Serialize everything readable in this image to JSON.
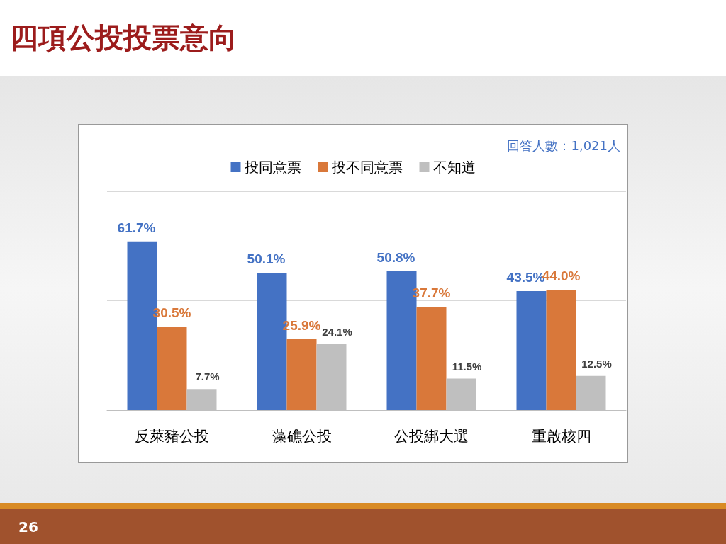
{
  "chart_data": {
    "type": "bar",
    "title": "四項公投投票意向",
    "annotations": [
      "回答人數：1,021人",
      "26"
    ],
    "categories": [
      "反萊豬公投",
      "藻礁公投",
      "公投綁大選",
      "重啟核四"
    ],
    "series": [
      {
        "name": "投同意票",
        "color": "#4472c4",
        "values": [
          61.7,
          50.1,
          50.8,
          43.5
        ],
        "value_labels": [
          "61.7%",
          "50.1%",
          "50.8%",
          "43.5%"
        ]
      },
      {
        "name": "投不同意票",
        "color": "#d9783a",
        "values": [
          30.5,
          25.9,
          37.7,
          44.0
        ],
        "value_labels": [
          "30.5%",
          "25.9%",
          "37.7%",
          "44.0%"
        ]
      },
      {
        "name": "不知道",
        "color": "#bfbfbf",
        "values": [
          7.7,
          24.1,
          11.5,
          12.5
        ],
        "value_labels": [
          "7.7%",
          "24.1%",
          "11.5%",
          "12.5%"
        ]
      }
    ],
    "ylim": [
      0,
      80
    ],
    "yticks": [
      0,
      20,
      40,
      60,
      80
    ],
    "grid": "y",
    "tick_labels": "x",
    "legend": "top"
  }
}
